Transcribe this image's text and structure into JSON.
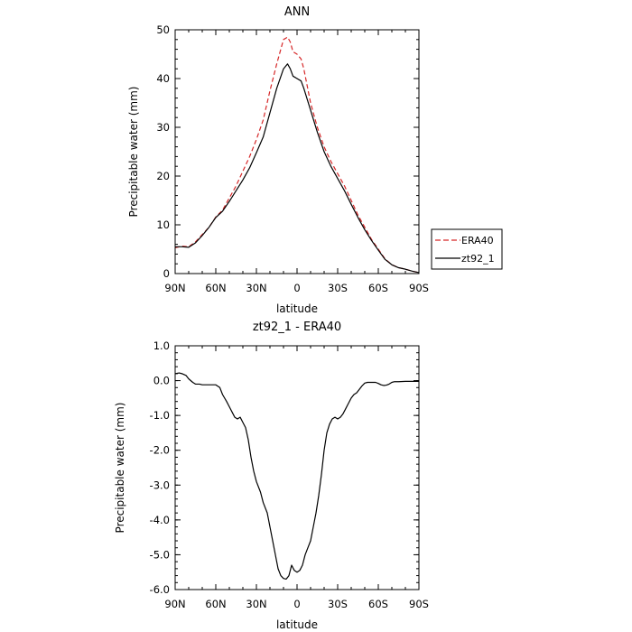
{
  "chart_data": [
    {
      "type": "line",
      "title": "ANN",
      "xlabel": "latitude",
      "ylabel": "Precipitable water (mm)",
      "xlim": [
        90,
        -90
      ],
      "ylim": [
        0,
        50
      ],
      "x_ticks": [
        90,
        60,
        30,
        0,
        -30,
        -60,
        -90
      ],
      "x_tick_labels": [
        "90N",
        "60N",
        "30N",
        "0",
        "30S",
        "60S",
        "90S"
      ],
      "y_ticks": [
        0,
        10,
        20,
        30,
        40,
        50
      ],
      "y_tick_labels": [
        "0",
        "10",
        "20",
        "30",
        "40",
        "50"
      ],
      "grid": false,
      "legend_placement": "right",
      "series": [
        {
          "name": "ERA40",
          "color": "#d62728",
          "dash": "dashed",
          "x": [
            90,
            85,
            80,
            75,
            70,
            65,
            60,
            55,
            50,
            45,
            40,
            35,
            30,
            25,
            20,
            15,
            10,
            7,
            5,
            3,
            0,
            -3,
            -5,
            -10,
            -15,
            -20,
            -25,
            -30,
            -35,
            -40,
            -45,
            -50,
            -55,
            -60,
            -65,
            -70,
            -75,
            -80,
            -85,
            -90
          ],
          "values": [
            5.3,
            5.6,
            5.5,
            6.5,
            8.0,
            9.5,
            11.6,
            13.0,
            15.5,
            18.0,
            21.0,
            24.0,
            27.5,
            31.5,
            37.5,
            43.0,
            48.0,
            48.5,
            47.5,
            45.5,
            45.0,
            44.0,
            42.0,
            35.0,
            30.0,
            26.0,
            23.0,
            20.5,
            18.0,
            15.0,
            12.0,
            9.5,
            7.0,
            5.0,
            3.0,
            1.8,
            1.2,
            0.9,
            0.5,
            0.2
          ]
        },
        {
          "name": "zt92_1",
          "color": "#000000",
          "dash": "solid",
          "x": [
            90,
            85,
            80,
            75,
            70,
            65,
            60,
            55,
            50,
            45,
            40,
            35,
            30,
            25,
            20,
            15,
            10,
            7,
            5,
            3,
            0,
            -3,
            -5,
            -10,
            -15,
            -20,
            -25,
            -30,
            -35,
            -40,
            -45,
            -50,
            -55,
            -60,
            -65,
            -70,
            -75,
            -80,
            -85,
            -90
          ],
          "values": [
            5.5,
            5.5,
            5.4,
            6.3,
            7.8,
            9.5,
            11.5,
            12.8,
            14.8,
            17.0,
            19.2,
            21.7,
            24.8,
            28.0,
            33.0,
            38.0,
            42.0,
            43.0,
            42.0,
            40.5,
            40.0,
            39.5,
            38.0,
            33.5,
            29.0,
            25.0,
            22.0,
            19.5,
            17.0,
            14.2,
            11.5,
            9.0,
            6.8,
            4.8,
            2.9,
            1.8,
            1.2,
            0.9,
            0.5,
            0.2
          ]
        }
      ]
    },
    {
      "type": "line",
      "title": "zt92_1 - ERA40",
      "xlabel": "latitude",
      "ylabel": "Precipitable water (mm)",
      "xlim": [
        90,
        -90
      ],
      "ylim": [
        -6,
        1
      ],
      "x_ticks": [
        90,
        60,
        30,
        0,
        -30,
        -60,
        -90
      ],
      "x_tick_labels": [
        "90N",
        "60N",
        "30N",
        "0",
        "30S",
        "60S",
        "90S"
      ],
      "y_ticks": [
        1,
        0,
        -1,
        -2,
        -3,
        -4,
        -5,
        -6
      ],
      "y_tick_labels": [
        "1.0",
        "0.0",
        "-1.0",
        "-2.0",
        "-3.0",
        "-4.0",
        "-5.0",
        "-6.0"
      ],
      "grid": false,
      "series": [
        {
          "color": "#000000",
          "dash": "solid",
          "x": [
            90,
            87,
            85,
            82,
            80,
            77,
            75,
            72,
            70,
            65,
            60,
            57,
            55,
            52,
            50,
            48,
            46,
            44,
            42,
            40,
            38,
            36,
            34,
            32,
            30,
            27,
            25,
            22,
            20,
            18,
            16,
            14,
            12,
            10,
            8,
            6,
            4,
            2,
            0,
            -2,
            -4,
            -6,
            -8,
            -10,
            -12,
            -14,
            -16,
            -18,
            -20,
            -22,
            -24,
            -26,
            -28,
            -30,
            -32,
            -34,
            -36,
            -38,
            -40,
            -42,
            -44,
            -46,
            -48,
            -50,
            -52,
            -54,
            -56,
            -58,
            -60,
            -62,
            -64,
            -66,
            -68,
            -70,
            -72,
            -75,
            -80,
            -85,
            -90
          ],
          "values": [
            0.2,
            0.22,
            0.2,
            0.15,
            0.05,
            -0.05,
            -0.1,
            -0.1,
            -0.12,
            -0.12,
            -0.12,
            -0.2,
            -0.4,
            -0.6,
            -0.75,
            -0.9,
            -1.05,
            -1.1,
            -1.05,
            -1.2,
            -1.35,
            -1.7,
            -2.2,
            -2.6,
            -2.9,
            -3.2,
            -3.5,
            -3.8,
            -4.2,
            -4.6,
            -5.0,
            -5.4,
            -5.6,
            -5.68,
            -5.7,
            -5.6,
            -5.3,
            -5.45,
            -5.5,
            -5.45,
            -5.3,
            -5.0,
            -4.8,
            -4.6,
            -4.2,
            -3.8,
            -3.3,
            -2.7,
            -2.0,
            -1.5,
            -1.25,
            -1.1,
            -1.05,
            -1.1,
            -1.05,
            -0.95,
            -0.8,
            -0.65,
            -0.5,
            -0.4,
            -0.35,
            -0.25,
            -0.15,
            -0.07,
            -0.05,
            -0.05,
            -0.05,
            -0.05,
            -0.08,
            -0.12,
            -0.14,
            -0.13,
            -0.1,
            -0.05,
            -0.03,
            -0.03,
            -0.02,
            -0.02,
            -0.02
          ]
        }
      ]
    }
  ]
}
